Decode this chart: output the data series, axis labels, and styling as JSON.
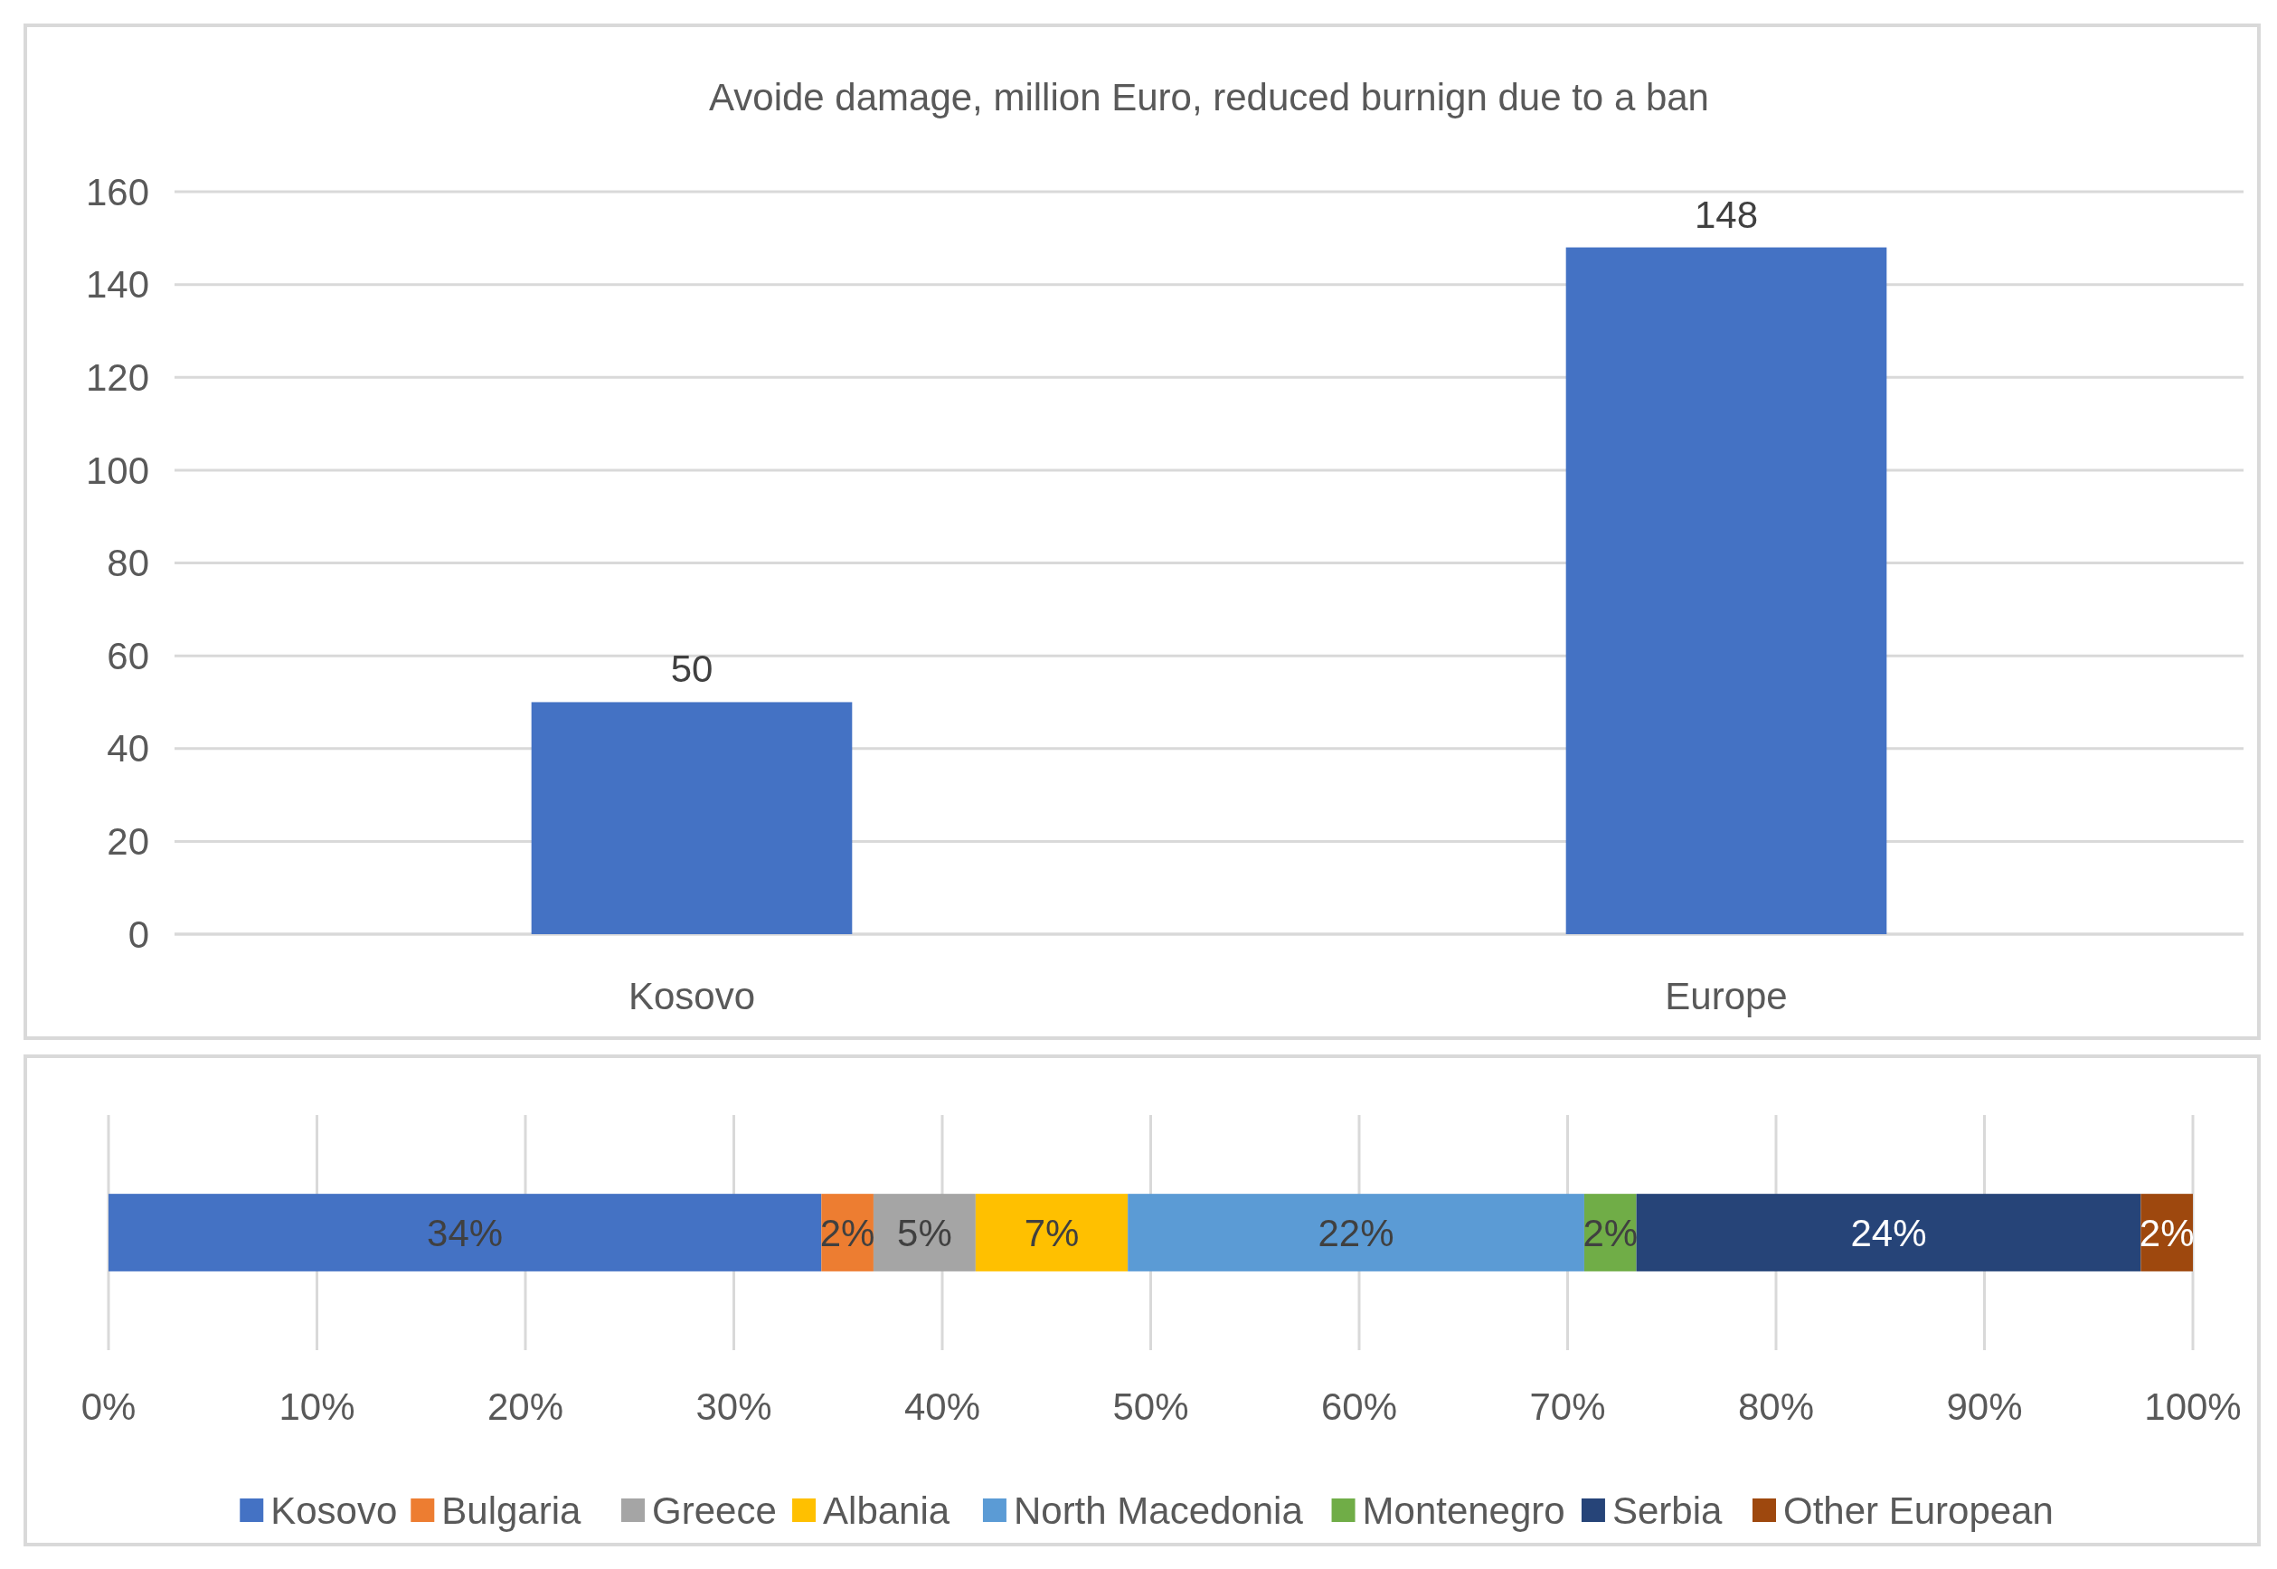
{
  "chart_data": [
    {
      "type": "bar",
      "title": "Avoide damage, million Euro, reduced burnign due to a ban",
      "categories": [
        "Kosovo",
        "Europe"
      ],
      "values": [
        50,
        148
      ],
      "color": "#4472c4",
      "ylim": [
        0,
        160
      ],
      "yticks": [
        0,
        20,
        40,
        60,
        80,
        100,
        120,
        140,
        160
      ],
      "grid": "y",
      "data_labels": true
    },
    {
      "type": "bar",
      "orientation": "horizontal",
      "stacked": true,
      "categories": [
        null
      ],
      "xlim": [
        0,
        100
      ],
      "xticks": [
        {
          "value": 0,
          "label": "0%"
        },
        {
          "value": 10,
          "label": "10%"
        },
        {
          "value": 20,
          "label": "20%"
        },
        {
          "value": 30,
          "label": "30%"
        },
        {
          "value": 40,
          "label": "40%"
        },
        {
          "value": 50,
          "label": "50%"
        },
        {
          "value": 60,
          "label": "60%"
        },
        {
          "value": 70,
          "label": "70%"
        },
        {
          "value": 80,
          "label": "80%"
        },
        {
          "value": 90,
          "label": "90%"
        },
        {
          "value": 100,
          "label": "100%"
        }
      ],
      "grid": "x",
      "legend": "bottom",
      "series": [
        {
          "name": "Kosovo",
          "color": "#4472c4",
          "values": [
            34.2
          ],
          "value_labels": [
            "34%"
          ]
        },
        {
          "name": "Bulgaria",
          "color": "#ed7d31",
          "values": [
            2.5
          ],
          "value_labels": [
            "2%"
          ]
        },
        {
          "name": "Greece",
          "color": "#a5a5a5",
          "values": [
            4.9
          ],
          "value_labels": [
            "5%"
          ]
        },
        {
          "name": "Albania",
          "color": "#ffc000",
          "values": [
            7.3
          ],
          "value_labels": [
            "7%"
          ]
        },
        {
          "name": "North Macedonia",
          "color": "#5b9bd5",
          "values": [
            21.9
          ],
          "value_labels": [
            "22%"
          ]
        },
        {
          "name": "Montenegro",
          "color": "#70ad47",
          "values": [
            2.5
          ],
          "value_labels": [
            "2%"
          ]
        },
        {
          "name": "Serbia",
          "color": "#264478",
          "values": [
            24.2
          ],
          "value_labels": [
            "24%"
          ]
        },
        {
          "name": "Other European",
          "color": "#9e480e",
          "values": [
            2.5
          ],
          "value_labels": [
            "2%"
          ]
        }
      ]
    }
  ]
}
